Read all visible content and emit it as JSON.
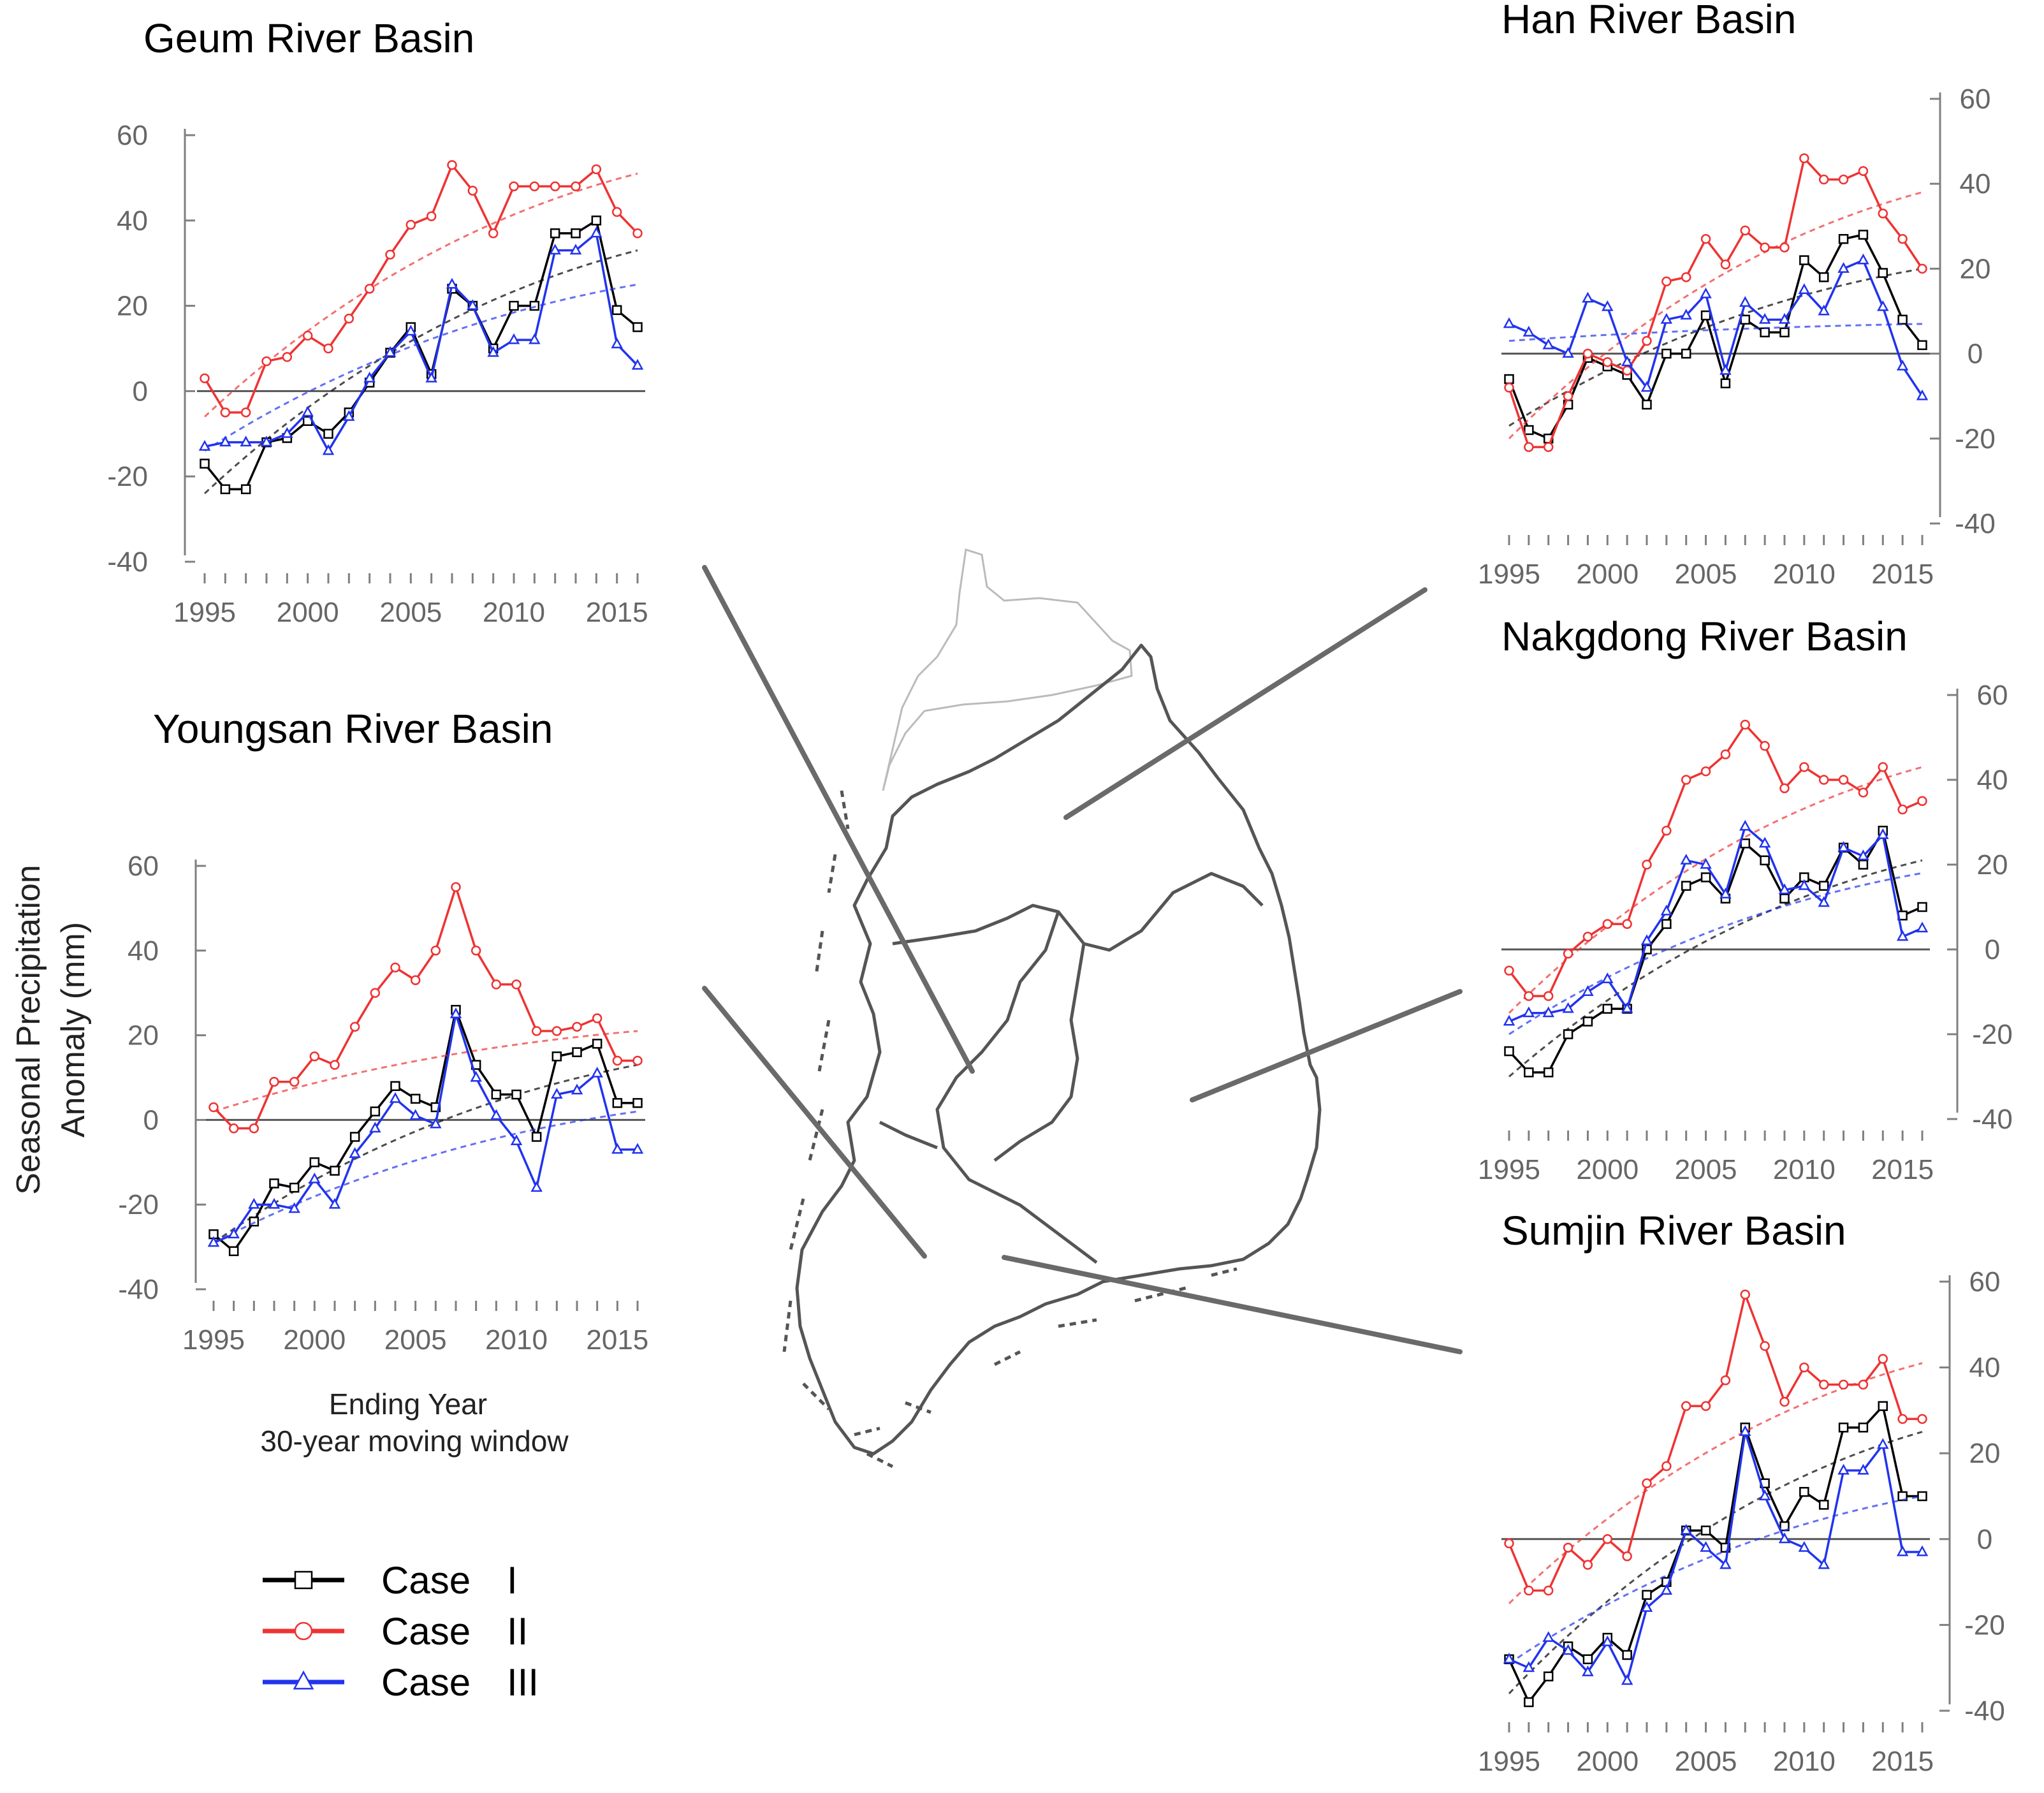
{
  "colors": {
    "case1": "#000000",
    "case2": "#ee3333",
    "case3": "#2233ee",
    "map": "#555555"
  },
  "ylabel": [
    "Seasonal Precipitation",
    "Anomaly (mm)"
  ],
  "xlabel": [
    "Ending Year",
    "30-year moving window"
  ],
  "legend": [
    {
      "name": "Case",
      "num": "I",
      "marker": "square",
      "color": "#000000"
    },
    {
      "name": "Case",
      "num": "II",
      "marker": "circle",
      "color": "#ee3333"
    },
    {
      "name": "Case",
      "num": "III",
      "marker": "triangle",
      "color": "#2233ee"
    }
  ],
  "chart_data": [
    {
      "type": "line",
      "title": "Geum River Basin",
      "xlabel": "Ending Year",
      "ylabel": "Seasonal Precipitation Anomaly (mm)",
      "xlim": [
        1995,
        2016
      ],
      "ylim": [
        -40,
        60
      ],
      "xticks": [
        1995,
        2000,
        2005,
        2010,
        2015
      ],
      "yticks": [
        -40,
        -20,
        0,
        20,
        40,
        60
      ],
      "yaxis_side": "left",
      "x": [
        1995,
        1996,
        1997,
        1998,
        1999,
        2000,
        2001,
        2002,
        2003,
        2004,
        2005,
        2006,
        2007,
        2008,
        2009,
        2010,
        2011,
        2012,
        2013,
        2014,
        2015,
        2016
      ],
      "series": [
        {
          "name": "Case I",
          "values": [
            -17,
            -23,
            -23,
            -12,
            -11,
            -7,
            -10,
            -5,
            2,
            9,
            15,
            4,
            24,
            20,
            10,
            20,
            20,
            37,
            37,
            40,
            19,
            15
          ],
          "trend_start": -24,
          "trend_end": 33
        },
        {
          "name": "Case II",
          "values": [
            3,
            -5,
            -5,
            7,
            8,
            13,
            10,
            17,
            24,
            32,
            39,
            41,
            53,
            47,
            37,
            48,
            48,
            48,
            48,
            52,
            42,
            37
          ],
          "trend_start": -6,
          "trend_end": 51
        },
        {
          "name": "Case III",
          "values": [
            -13,
            -12,
            -12,
            -12,
            -10,
            -5,
            -14,
            -6,
            3,
            9,
            14,
            3,
            25,
            20,
            9,
            12,
            12,
            33,
            33,
            37,
            11,
            6
          ],
          "trend_start": -14,
          "trend_end": 25
        }
      ]
    },
    {
      "type": "line",
      "title": "Youngsan River Basin",
      "xlabel": "Ending Year",
      "ylabel": "Seasonal Precipitation Anomaly (mm)",
      "xlim": [
        1995,
        2016
      ],
      "ylim": [
        -40,
        60
      ],
      "xticks": [
        1995,
        2000,
        2005,
        2010,
        2015
      ],
      "yticks": [
        -40,
        -20,
        0,
        20,
        40,
        60
      ],
      "yaxis_side": "left",
      "x": [
        1995,
        1996,
        1997,
        1998,
        1999,
        2000,
        2001,
        2002,
        2003,
        2004,
        2005,
        2006,
        2007,
        2008,
        2009,
        2010,
        2011,
        2012,
        2013,
        2014,
        2015,
        2016
      ],
      "series": [
        {
          "name": "Case I",
          "values": [
            -27,
            -31,
            -24,
            -15,
            -16,
            -10,
            -12,
            -4,
            2,
            8,
            5,
            3,
            26,
            13,
            6,
            6,
            -4,
            15,
            16,
            18,
            4,
            4
          ],
          "trend_start": -29,
          "trend_end": 13
        },
        {
          "name": "Case II",
          "values": [
            3,
            -2,
            -2,
            9,
            9,
            15,
            13,
            22,
            30,
            36,
            33,
            40,
            55,
            40,
            32,
            32,
            21,
            21,
            22,
            24,
            14,
            14
          ],
          "trend_start": 2,
          "trend_end": 21
        },
        {
          "name": "Case III",
          "values": [
            -29,
            -27,
            -20,
            -20,
            -21,
            -14,
            -20,
            -8,
            -2,
            5,
            1,
            -1,
            25,
            10,
            1,
            -5,
            -16,
            6,
            7,
            11,
            -7,
            -7
          ],
          "trend_start": -29,
          "trend_end": 2
        }
      ]
    },
    {
      "type": "line",
      "title": "Han River Basin",
      "xlabel": "",
      "ylabel": "",
      "xlim": [
        1995,
        2016
      ],
      "ylim": [
        -40,
        60
      ],
      "xticks": [
        1995,
        2000,
        2005,
        2010,
        2015
      ],
      "yticks": [
        -40,
        -20,
        0,
        20,
        40,
        60
      ],
      "yaxis_side": "right",
      "x": [
        1995,
        1996,
        1997,
        1998,
        1999,
        2000,
        2001,
        2002,
        2003,
        2004,
        2005,
        2006,
        2007,
        2008,
        2009,
        2010,
        2011,
        2012,
        2013,
        2014,
        2015,
        2016
      ],
      "series": [
        {
          "name": "Case I",
          "values": [
            -6,
            -18,
            -20,
            -12,
            -1,
            -3,
            -5,
            -12,
            0,
            0,
            9,
            -7,
            8,
            5,
            5,
            22,
            18,
            27,
            28,
            19,
            8,
            2
          ],
          "trend_start": -17,
          "trend_end": 20
        },
        {
          "name": "Case II",
          "values": [
            -8,
            -22,
            -22,
            -10,
            0,
            -2,
            -4,
            3,
            17,
            18,
            27,
            21,
            29,
            25,
            25,
            46,
            41,
            41,
            43,
            33,
            27,
            20
          ],
          "trend_start": -20,
          "trend_end": 38
        },
        {
          "name": "Case III",
          "values": [
            7,
            5,
            2,
            0,
            13,
            11,
            -2,
            -8,
            8,
            9,
            14,
            -4,
            12,
            8,
            8,
            15,
            10,
            20,
            22,
            11,
            -3,
            -10
          ],
          "trend_start": 3,
          "trend_end": 7
        }
      ]
    },
    {
      "type": "line",
      "title": "Nakgdong River Basin",
      "xlabel": "",
      "ylabel": "",
      "xlim": [
        1995,
        2016
      ],
      "ylim": [
        -40,
        60
      ],
      "xticks": [
        1995,
        2000,
        2005,
        2010,
        2015
      ],
      "yticks": [
        -40,
        -20,
        0,
        20,
        40,
        60
      ],
      "yaxis_side": "right",
      "x": [
        1995,
        1996,
        1997,
        1998,
        1999,
        2000,
        2001,
        2002,
        2003,
        2004,
        2005,
        2006,
        2007,
        2008,
        2009,
        2010,
        2011,
        2012,
        2013,
        2014,
        2015,
        2016
      ],
      "series": [
        {
          "name": "Case I",
          "values": [
            -24,
            -29,
            -29,
            -20,
            -17,
            -14,
            -14,
            0,
            6,
            15,
            17,
            12,
            25,
            21,
            12,
            17,
            15,
            24,
            20,
            28,
            8,
            10
          ],
          "trend_start": -30,
          "trend_end": 21
        },
        {
          "name": "Case II",
          "values": [
            -5,
            -11,
            -11,
            -1,
            3,
            6,
            6,
            20,
            28,
            40,
            42,
            46,
            53,
            48,
            38,
            43,
            40,
            40,
            37,
            43,
            33,
            35
          ],
          "trend_start": -15,
          "trend_end": 43
        },
        {
          "name": "Case III",
          "values": [
            -17,
            -15,
            -15,
            -14,
            -10,
            -7,
            -14,
            2,
            9,
            21,
            20,
            13,
            29,
            25,
            14,
            15,
            11,
            24,
            22,
            27,
            3,
            5
          ],
          "trend_start": -20,
          "trend_end": 18
        }
      ]
    },
    {
      "type": "line",
      "title": "Sumjin River Basin",
      "xlabel": "",
      "ylabel": "",
      "xlim": [
        1995,
        2016
      ],
      "ylim": [
        -40,
        60
      ],
      "xticks": [
        1995,
        2000,
        2005,
        2010,
        2015
      ],
      "yticks": [
        -40,
        -20,
        0,
        20,
        40,
        60
      ],
      "yaxis_side": "right",
      "x": [
        1995,
        1996,
        1997,
        1998,
        1999,
        2000,
        2001,
        2002,
        2003,
        2004,
        2005,
        2006,
        2007,
        2008,
        2009,
        2010,
        2011,
        2012,
        2013,
        2014,
        2015,
        2016
      ],
      "series": [
        {
          "name": "Case I",
          "values": [
            -28,
            -38,
            -32,
            -25,
            -28,
            -23,
            -27,
            -13,
            -10,
            2,
            2,
            -2,
            26,
            13,
            3,
            11,
            8,
            26,
            26,
            31,
            10,
            10
          ],
          "trend_start": -36,
          "trend_end": 25
        },
        {
          "name": "Case II",
          "values": [
            -1,
            -12,
            -12,
            -2,
            -6,
            0,
            -4,
            13,
            17,
            31,
            31,
            37,
            57,
            45,
            32,
            40,
            36,
            36,
            36,
            42,
            28,
            28
          ],
          "trend_start": -15,
          "trend_end": 41
        },
        {
          "name": "Case III",
          "values": [
            -28,
            -30,
            -23,
            -26,
            -31,
            -24,
            -33,
            -16,
            -12,
            2,
            -2,
            -6,
            25,
            10,
            0,
            -2,
            -6,
            16,
            16,
            22,
            -3,
            -3
          ],
          "trend_start": -29,
          "trend_end": 10
        }
      ]
    }
  ]
}
